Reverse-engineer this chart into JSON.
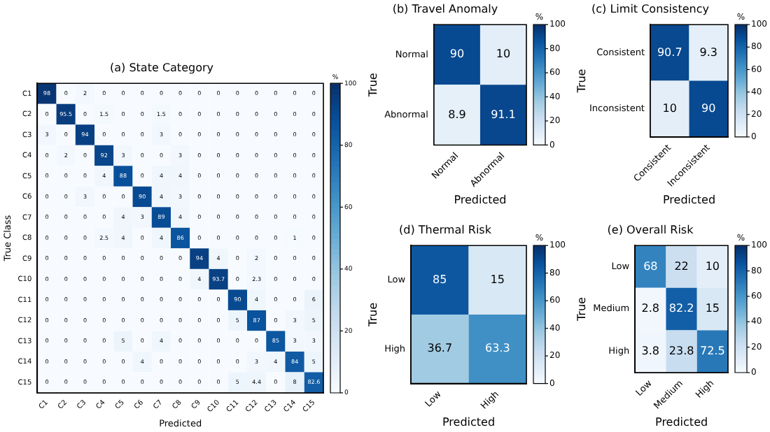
{
  "chart_data": [
    {
      "type": "heatmap",
      "title": "(a) State Category",
      "xlabel": "Predicted",
      "ylabel": "True Class",
      "clabel": "%",
      "clim": [
        0,
        100
      ],
      "cticks": [
        0,
        20,
        40,
        60,
        80,
        100
      ],
      "data_labels": true,
      "categories": [
        "C1",
        "C2",
        "C3",
        "C4",
        "C5",
        "C6",
        "C7",
        "C8",
        "C9",
        "C10",
        "C11",
        "C12",
        "C13",
        "C14",
        "C15"
      ],
      "y_categories": [
        "C1",
        "C2",
        "C3",
        "C4",
        "C5",
        "C6",
        "C7",
        "C8",
        "C9",
        "C10",
        "C11",
        "C12",
        "C13",
        "C14",
        "C15"
      ],
      "cells": [
        [
          98,
          0,
          2,
          0,
          0,
          0,
          0,
          0,
          0,
          0,
          0,
          0,
          0,
          0,
          0
        ],
        [
          0,
          95.5,
          0,
          1.5,
          0,
          0,
          1.5,
          0,
          0,
          0,
          0,
          0,
          0,
          0,
          0
        ],
        [
          3,
          0,
          94,
          0,
          0,
          0,
          3,
          0,
          0,
          0,
          0,
          0,
          0,
          0,
          0
        ],
        [
          0,
          2,
          0,
          92,
          3,
          0,
          0,
          3,
          0,
          0,
          0,
          0,
          0,
          0,
          0
        ],
        [
          0,
          0,
          0,
          4,
          88,
          0,
          4,
          4,
          0,
          0,
          0,
          0,
          0,
          0,
          0
        ],
        [
          0,
          0,
          3,
          0,
          0,
          90,
          4,
          3,
          0,
          0,
          0,
          0,
          0,
          0,
          0
        ],
        [
          0,
          0,
          0,
          0,
          4,
          3,
          89,
          4,
          0,
          0,
          0,
          0,
          0,
          0,
          0
        ],
        [
          0,
          0,
          0,
          2.5,
          4,
          0,
          4,
          86,
          0,
          0,
          0,
          0,
          0,
          1,
          0
        ],
        [
          0,
          0,
          0,
          0,
          0,
          0,
          0,
          0,
          94,
          4,
          0,
          2,
          0,
          0,
          0
        ],
        [
          0,
          0,
          0,
          0,
          0,
          0,
          0,
          0,
          4,
          93.7,
          0,
          2.3,
          0,
          0,
          0
        ],
        [
          0,
          0,
          0,
          0,
          0,
          0,
          0,
          0,
          0,
          0,
          90,
          4,
          0,
          0,
          6
        ],
        [
          0,
          0,
          0,
          0,
          0,
          0,
          0,
          0,
          0,
          0,
          5,
          87,
          0,
          3,
          5
        ],
        [
          0,
          0,
          0,
          0,
          5,
          0,
          4,
          0,
          0,
          0,
          0,
          0,
          85,
          3,
          3
        ],
        [
          0,
          0,
          0,
          0,
          0,
          4,
          0,
          0,
          0,
          0,
          0,
          3,
          4,
          84,
          5
        ],
        [
          0,
          0,
          0,
          0,
          0,
          0,
          0,
          0,
          0,
          0,
          5,
          4.4,
          0,
          8,
          82.6
        ]
      ]
    },
    {
      "type": "heatmap",
      "title": "(b) Travel Anomaly",
      "xlabel": "Predicted",
      "ylabel": "True",
      "clabel": "%",
      "clim": [
        0,
        100
      ],
      "cticks": [
        0,
        20,
        40,
        60,
        80,
        100
      ],
      "data_labels": true,
      "categories": [
        "Normal",
        "Abnormal"
      ],
      "y_categories": [
        "Normal",
        "Abnormal"
      ],
      "cells": [
        [
          90,
          10
        ],
        [
          8.9,
          91.1
        ]
      ]
    },
    {
      "type": "heatmap",
      "title": "(c) Limit Consistency",
      "xlabel": "Predicted",
      "ylabel": "True",
      "clabel": "%",
      "clim": [
        0,
        100
      ],
      "cticks": [
        0,
        20,
        40,
        60,
        80,
        100
      ],
      "data_labels": true,
      "categories": [
        "Consistent",
        "Inconsistent"
      ],
      "y_categories": [
        "Consistent",
        "Inconsistent"
      ],
      "cells": [
        [
          90.7,
          9.3
        ],
        [
          10,
          90
        ]
      ]
    },
    {
      "type": "heatmap",
      "title": "(d) Thermal Risk",
      "xlabel": "Predicted",
      "ylabel": "True",
      "clabel": "%",
      "clim": [
        0,
        100
      ],
      "cticks": [
        0,
        20,
        40,
        60,
        80,
        100
      ],
      "data_labels": true,
      "categories": [
        "Low",
        "High"
      ],
      "y_categories": [
        "Low",
        "High"
      ],
      "cells": [
        [
          85,
          15
        ],
        [
          36.7,
          63.3
        ]
      ]
    },
    {
      "type": "heatmap",
      "title": "(e) Overall Risk",
      "xlabel": "Predicted",
      "ylabel": "True",
      "clabel": "%",
      "clim": [
        0,
        100
      ],
      "cticks": [
        0,
        20,
        40,
        60,
        80,
        100
      ],
      "data_labels": true,
      "categories": [
        "Low",
        "Medium",
        "High"
      ],
      "y_categories": [
        "Low",
        "Medium",
        "High"
      ],
      "cells": [
        [
          68,
          22,
          10
        ],
        [
          2.8,
          82.2,
          15
        ],
        [
          3.8,
          23.8,
          72.5
        ]
      ]
    }
  ]
}
